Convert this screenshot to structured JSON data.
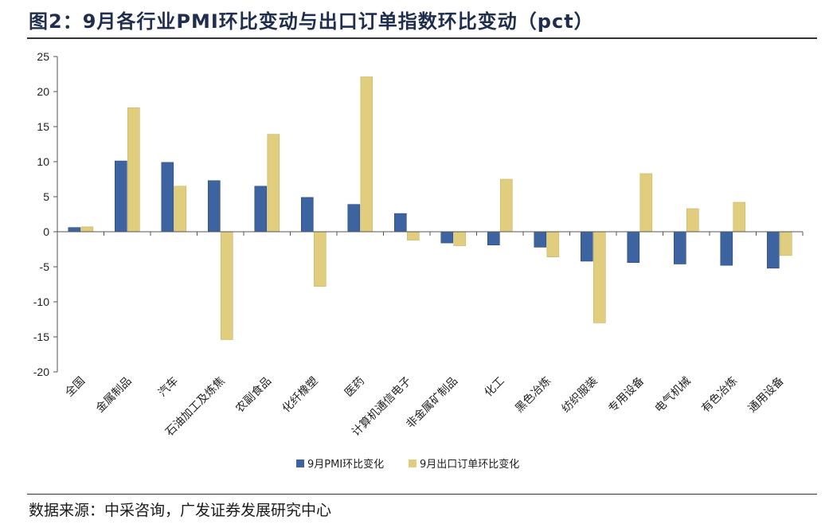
{
  "header": {
    "title": "图2：9月各行业PMI环比变动与出口订单指数环比变动（pct）"
  },
  "footer": {
    "source": "数据来源：中采咨询，广发证券发展研究中心"
  },
  "chart_data": {
    "type": "bar",
    "title": "9月各行业PMI环比变动与出口订单指数环比变动（pct）",
    "xlabel": "",
    "ylabel": "",
    "ylim": [
      -20,
      25
    ],
    "yticks": [
      25,
      20,
      15,
      10,
      5,
      0,
      -5,
      -10,
      -15,
      -20
    ],
    "grid": false,
    "legend_position": "bottom-center",
    "categories": [
      "全国",
      "金属制品",
      "汽车",
      "石油加工及炼焦",
      "农副食品",
      "化纤橡塑",
      "医药",
      "计算机通信电子",
      "非金属矿制品",
      "化工",
      "黑色冶炼",
      "纺织服装",
      "专用设备",
      "电气机械",
      "有色冶炼",
      "通用设备"
    ],
    "series": [
      {
        "name": "9月PMI环比变化",
        "color": "#3d64a0",
        "values": [
          0.6,
          10.1,
          9.9,
          7.3,
          6.5,
          4.9,
          3.9,
          2.6,
          -1.6,
          -1.9,
          -2.2,
          -4.2,
          -4.4,
          -4.6,
          -4.8,
          -5.2
        ]
      },
      {
        "name": "9月出口订单环比变化",
        "color": "#e0cd7e",
        "values": [
          0.7,
          17.7,
          6.5,
          -15.4,
          13.9,
          -7.8,
          22.1,
          -1.2,
          -2.0,
          7.5,
          -3.6,
          -13.0,
          8.3,
          3.3,
          4.2,
          -3.4
        ]
      }
    ]
  }
}
